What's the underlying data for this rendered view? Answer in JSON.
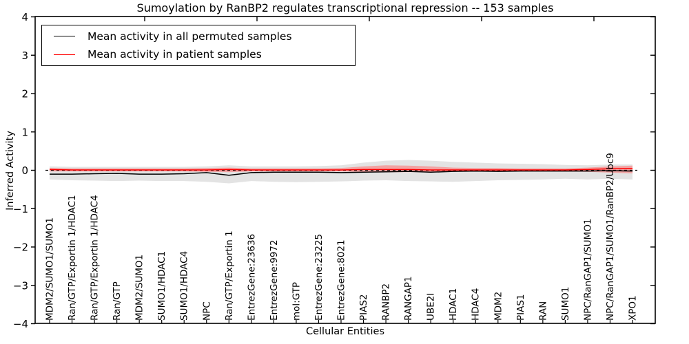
{
  "figure": {
    "title": "Sumoylation by RanBP2 regulates transcriptional repression -- 153 samples",
    "xlabel": "Cellular Entities",
    "ylabel": "Inferred Activity"
  },
  "legend": {
    "items": [
      {
        "label": "Mean activity in all permuted samples",
        "color": "#000000"
      },
      {
        "label": "Mean activity in patient samples",
        "color": "#ff0000"
      }
    ]
  },
  "chart_data": {
    "type": "line",
    "title": "Sumoylation by RanBP2 regulates transcriptional repression -- 153 samples",
    "xlabel": "Cellular Entities",
    "ylabel": "Inferred Activity",
    "ylim": [
      -4,
      4
    ],
    "yticks": [
      -4,
      -3,
      -2,
      -1,
      0,
      1,
      2,
      3,
      4
    ],
    "grid": false,
    "legend_position": "upper left",
    "zero_line": 0,
    "categories": [
      "MDM2/SUMO1/SUMO1",
      "Ran/GTP/Exportin 1/HDAC1",
      "Ran/GTP/Exportin 1/HDAC4",
      "Ran/GTP",
      "MDM2/SUMO1",
      "SUMO1/HDAC1",
      "SUMO1/HDAC4",
      "NPC",
      "Ran/GTP/Exportin 1",
      "EntrezGene:23636",
      "EntrezGene:9972",
      "mol:GTP",
      "EntrezGene:23225",
      "EntrezGene:8021",
      "PIAS2",
      "RANBP2",
      "RANGAP1",
      "UBE2I",
      "HDAC1",
      "HDAC4",
      "MDM2",
      "PIAS1",
      "RAN",
      "SUMO1",
      "NPC/RanGAP1/SUMO1",
      "NPC/RanGAP1/SUMO1/RanBP2/Ubc9",
      "XPO1"
    ],
    "series": [
      {
        "name": "Mean activity in all permuted samples",
        "color": "#000000",
        "values": [
          -0.1,
          -0.1,
          -0.09,
          -0.08,
          -0.1,
          -0.1,
          -0.09,
          -0.06,
          -0.13,
          -0.06,
          -0.05,
          -0.05,
          -0.05,
          -0.06,
          -0.05,
          -0.04,
          -0.03,
          -0.05,
          -0.03,
          -0.02,
          -0.03,
          -0.02,
          -0.02,
          -0.02,
          -0.02,
          -0.01,
          -0.02
        ]
      },
      {
        "name": "Mean activity in patient samples",
        "color": "#ff0000",
        "values": [
          0.02,
          0.01,
          0.01,
          0.01,
          0.01,
          0.01,
          0.01,
          0.01,
          0.02,
          0.01,
          0.01,
          0.01,
          0.01,
          0.01,
          0.02,
          0.02,
          0.02,
          0.01,
          0.01,
          0.01,
          0.01,
          0.01,
          0.01,
          0.01,
          0.02,
          0.04,
          0.05
        ]
      }
    ],
    "bands": [
      {
        "name": "permuted-samples-range",
        "color": "#e3e3e3",
        "upper": [
          0.1,
          0.09,
          0.09,
          0.09,
          0.09,
          0.09,
          0.09,
          0.1,
          0.13,
          0.1,
          0.1,
          0.1,
          0.11,
          0.13,
          0.2,
          0.25,
          0.27,
          0.25,
          0.22,
          0.2,
          0.18,
          0.17,
          0.16,
          0.14,
          0.13,
          0.15,
          0.15
        ],
        "lower": [
          -0.24,
          -0.26,
          -0.27,
          -0.28,
          -0.27,
          -0.28,
          -0.28,
          -0.3,
          -0.34,
          -0.28,
          -0.3,
          -0.31,
          -0.3,
          -0.29,
          -0.27,
          -0.26,
          -0.28,
          -0.29,
          -0.3,
          -0.28,
          -0.26,
          -0.25,
          -0.24,
          -0.22,
          -0.24,
          -0.22,
          -0.24
        ]
      },
      {
        "name": "patient-samples-range",
        "color": "#f2a3a3",
        "upper": [
          0.06,
          0.05,
          0.05,
          0.05,
          0.05,
          0.05,
          0.05,
          0.06,
          0.07,
          0.05,
          0.05,
          0.05,
          0.05,
          0.06,
          0.1,
          0.13,
          0.12,
          0.1,
          0.07,
          0.06,
          0.06,
          0.05,
          0.05,
          0.05,
          0.07,
          0.1,
          0.12
        ],
        "lower": [
          -0.03,
          -0.03,
          -0.03,
          -0.03,
          -0.03,
          -0.03,
          -0.03,
          -0.04,
          -0.05,
          -0.03,
          -0.03,
          -0.03,
          -0.03,
          -0.03,
          -0.04,
          -0.05,
          -0.05,
          -0.04,
          -0.03,
          -0.03,
          -0.03,
          -0.03,
          -0.03,
          -0.03,
          -0.04,
          -0.06,
          -0.08
        ]
      }
    ]
  }
}
